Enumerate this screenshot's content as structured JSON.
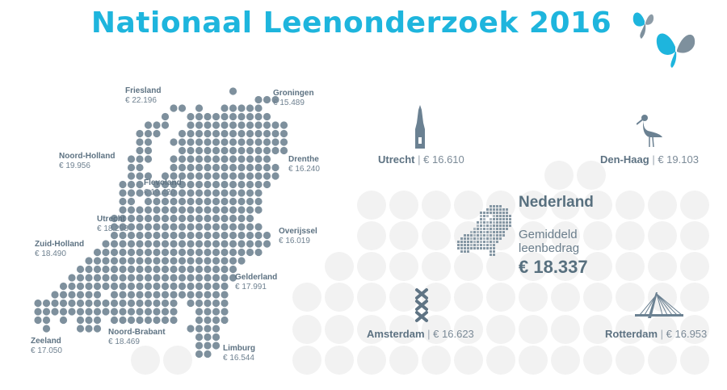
{
  "title": "Nationaal Leenonderzoek 2016",
  "colors": {
    "accent": "#1eb5dd",
    "map_dot": "#7e909d",
    "label": "#5d7282",
    "bg_dot": "#f2f2f2"
  },
  "provinces": [
    {
      "name": "Friesland",
      "value": "€ 22.196"
    },
    {
      "name": "Groningen",
      "value": "€ 15.489"
    },
    {
      "name": "Noord-Holland",
      "value": "€ 19.956"
    },
    {
      "name": "Drenthe",
      "value": "€ 16.240"
    },
    {
      "name": "Flevoland",
      "value": "€ 19.420"
    },
    {
      "name": "Utrecht",
      "value": "€ 18.298"
    },
    {
      "name": "Overijssel",
      "value": "€ 16.019"
    },
    {
      "name": "Zuid-Holland",
      "value": "€ 18.490"
    },
    {
      "name": "Gelderland",
      "value": "€ 17.991"
    },
    {
      "name": "Zeeland",
      "value": "€ 17.050"
    },
    {
      "name": "Noord-Brabant",
      "value": "€ 18.469"
    },
    {
      "name": "Limburg",
      "value": "€ 16.544"
    }
  ],
  "cities": {
    "utrecht": {
      "name": "Utrecht",
      "sep": "|",
      "value": "€ 16.610",
      "icon": "domtoren-icon"
    },
    "den_haag": {
      "name": "Den-Haag",
      "sep": "|",
      "value": "€ 19.103",
      "icon": "stork-icon"
    },
    "amsterdam": {
      "name": "Amsterdam",
      "sep": "|",
      "value": "€ 16.623",
      "icon": "xxx-icon"
    },
    "rotterdam": {
      "name": "Rotterdam",
      "sep": "|",
      "value": "€ 16.953",
      "icon": "erasmus-bridge-icon"
    }
  },
  "national": {
    "title": "Nederland",
    "subtitle": "Gemiddeld leenbedrag",
    "amount": "€ 18.337"
  }
}
